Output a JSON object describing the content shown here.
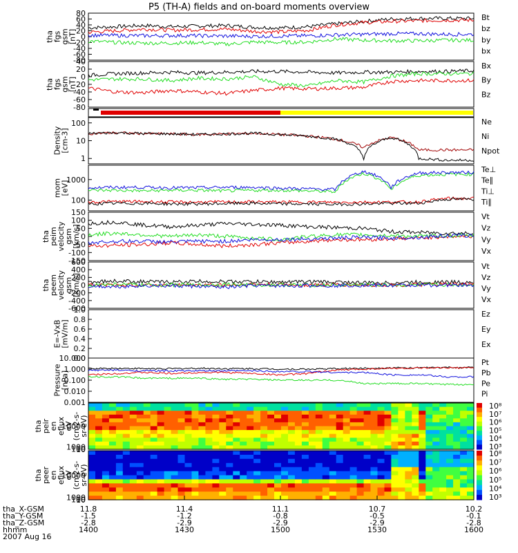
{
  "title": "P5 (TH-A) fields and on-board moments overview",
  "colors": {
    "black": "#000000",
    "red": "#e00000",
    "green": "#22dd22",
    "blue": "#1010dd",
    "darkred": "#a00000",
    "yellow": "#ffff00"
  },
  "footer": {
    "rows": [
      {
        "label": "tha_X-GSM",
        "values": [
          "11.8",
          "11.4",
          "11.1",
          "10.7",
          "10.2"
        ]
      },
      {
        "label": "tha_Y-GSM",
        "values": [
          "-1.5",
          "-1.2",
          "-0.8",
          "-0.5",
          "-0.1"
        ]
      },
      {
        "label": "tha_Z-GSM",
        "values": [
          "-2.8",
          "-2.9",
          "-2.9",
          "-2.9",
          "-2.8"
        ]
      },
      {
        "label": "hhmm",
        "values": [
          "1400",
          "1430",
          "1500",
          "1530",
          "1600"
        ]
      }
    ],
    "date": "2007 Aug 16"
  },
  "chart_data": [
    {
      "id": "fgs",
      "type": "line",
      "ylabel": [
        "tha",
        "fgs",
        "gsm",
        "[nT]"
      ],
      "ylim": [
        -80,
        80
      ],
      "ticks": [
        "80",
        "60",
        "40",
        "20",
        "0",
        "-20",
        "-40",
        "-60",
        "-80"
      ],
      "scale": "linear",
      "legend": [
        {
          "name": "Bt",
          "color": "black"
        },
        {
          "name": "bz",
          "color": "red"
        },
        {
          "name": "by",
          "color": "green"
        },
        {
          "name": "bx",
          "color": "blue"
        }
      ],
      "series": [
        {
          "name": "Bt",
          "color": "black",
          "values": [
            30,
            34,
            38,
            34,
            36,
            38,
            32,
            30,
            34,
            44,
            52,
            60,
            62,
            62,
            62
          ]
        },
        {
          "name": "bz",
          "color": "red",
          "values": [
            15,
            20,
            26,
            22,
            24,
            26,
            18,
            16,
            22,
            40,
            48,
            52,
            54,
            56,
            56
          ]
        },
        {
          "name": "by",
          "color": "green",
          "values": [
            -15,
            -20,
            -22,
            -22,
            -20,
            -26,
            -18,
            -20,
            -18,
            -8,
            -12,
            -14,
            -14,
            -12,
            -12
          ]
        },
        {
          "name": "bx",
          "color": "blue",
          "values": [
            5,
            4,
            3,
            4,
            3,
            2,
            1,
            2,
            3,
            6,
            8,
            10,
            10,
            8,
            8
          ]
        }
      ]
    },
    {
      "id": "fgs2",
      "type": "line",
      "ylabel": [
        "tha",
        "fgs",
        "gsm",
        "[nT]"
      ],
      "ylim": [
        -80,
        40
      ],
      "ticks": [
        "40",
        "20",
        "0",
        "-20",
        "-40",
        "-60",
        "-80"
      ],
      "scale": "linear",
      "legend": [
        {
          "name": "Bx",
          "color": "black"
        },
        {
          "name": "By",
          "color": "red"
        },
        {
          "name": "Bz",
          "color": "green"
        }
      ],
      "series": [
        {
          "name": "Bx",
          "color": "black",
          "values": [
            4,
            8,
            10,
            12,
            10,
            12,
            14,
            14,
            12,
            10,
            12,
            12,
            14,
            14,
            16
          ]
        },
        {
          "name": "By",
          "color": "red",
          "values": [
            -30,
            -40,
            -42,
            -36,
            -40,
            -44,
            -36,
            -30,
            -32,
            -30,
            -28,
            -12,
            -10,
            -10,
            -10
          ]
        },
        {
          "name": "Bz",
          "color": "green",
          "values": [
            -8,
            -6,
            -6,
            -10,
            -4,
            -6,
            0,
            -20,
            -24,
            -10,
            -14,
            2,
            8,
            8,
            8
          ]
        }
      ]
    },
    {
      "id": "density",
      "type": "line",
      "ylabel": [
        "Density",
        "[cm-3]"
      ],
      "ylim": [
        0.5,
        200
      ],
      "ticks": [
        "100",
        "10",
        "1"
      ],
      "tickvals": [
        100,
        10,
        1
      ],
      "scale": "log",
      "legend": [
        {
          "name": "Ne",
          "color": "red"
        },
        {
          "name": "Ni",
          "color": "black"
        },
        {
          "name": "Npot",
          "color": "blue"
        }
      ],
      "series": [
        {
          "name": "Ne",
          "color": "darkred",
          "values": [
            25,
            28,
            25,
            24,
            22,
            24,
            26,
            22,
            18,
            12,
            4,
            15,
            3,
            3,
            3
          ]
        },
        {
          "name": "Ni",
          "color": "black",
          "values": [
            25,
            28,
            25,
            24,
            22,
            24,
            26,
            22,
            18,
            12,
            1,
            15,
            1,
            0.8,
            0.8
          ]
        }
      ]
    },
    {
      "id": "temp",
      "type": "line",
      "ylabel": [
        "mom",
        "[eV]"
      ],
      "ylim": [
        30,
        5000
      ],
      "ticks": [
        "1000",
        "100"
      ],
      "tickvals": [
        1000,
        100
      ],
      "scale": "log",
      "legend": [
        {
          "name": "Te⊥",
          "color": "red"
        },
        {
          "name": "Te∥",
          "color": "black"
        },
        {
          "name": "Ti⊥",
          "color": "green"
        },
        {
          "name": "Ti∥",
          "color": "green"
        }
      ],
      "series": [
        {
          "name": "Ti⊥",
          "color": "green",
          "values": [
            300,
            300,
            280,
            300,
            300,
            280,
            300,
            300,
            280,
            250,
            2000,
            300,
            1600,
            1800,
            1800
          ]
        },
        {
          "name": "Ti∥",
          "color": "blue",
          "values": [
            400,
            420,
            420,
            400,
            400,
            420,
            420,
            380,
            350,
            330,
            2500,
            400,
            2100,
            2200,
            2200
          ]
        },
        {
          "name": "Te⊥",
          "color": "red",
          "values": [
            80,
            85,
            85,
            80,
            80,
            80,
            82,
            80,
            80,
            78,
            80,
            80,
            80,
            120,
            120
          ]
        },
        {
          "name": "Te∥",
          "color": "black",
          "values": [
            65,
            70,
            70,
            65,
            65,
            68,
            70,
            65,
            65,
            62,
            65,
            70,
            70,
            110,
            110
          ]
        }
      ]
    },
    {
      "id": "veli",
      "type": "line",
      "ylabel": [
        "tha",
        "peim",
        "velocity",
        "gsm",
        "[km/s]"
      ],
      "ylim": [
        -150,
        150
      ],
      "ticks": [
        "150",
        "100",
        "50",
        "0",
        "-50",
        "-100",
        "-150"
      ],
      "scale": "linear",
      "legend": [
        {
          "name": "Vt",
          "color": "black"
        },
        {
          "name": "Vz",
          "color": "red"
        },
        {
          "name": "Vy",
          "color": "green"
        },
        {
          "name": "Vx",
          "color": "blue"
        }
      ],
      "series": [
        {
          "name": "Vt",
          "color": "black",
          "values": [
            80,
            90,
            70,
            60,
            70,
            80,
            75,
            70,
            60,
            55,
            50,
            30,
            25,
            20,
            20
          ]
        },
        {
          "name": "Vz",
          "color": "red",
          "values": [
            -60,
            -55,
            -50,
            -40,
            -50,
            -60,
            -50,
            -40,
            -30,
            -20,
            -20,
            -15,
            -10,
            0,
            0
          ]
        },
        {
          "name": "Vy",
          "color": "green",
          "values": [
            10,
            20,
            10,
            0,
            10,
            0,
            -10,
            -20,
            0,
            10,
            10,
            5,
            0,
            5,
            5
          ]
        },
        {
          "name": "Vx",
          "color": "blue",
          "values": [
            -40,
            -30,
            -30,
            -35,
            -30,
            -30,
            -20,
            -20,
            -15,
            -10,
            -5,
            -10,
            -5,
            5,
            5
          ]
        }
      ]
    },
    {
      "id": "vele",
      "type": "line",
      "ylabel": [
        "tha",
        "peem",
        "velocity",
        "gsm",
        "[km/s]"
      ],
      "ylim": [
        -600,
        600
      ],
      "ticks": [
        "600",
        "400",
        "200",
        "0",
        "-200",
        "-400",
        "-600"
      ],
      "scale": "linear",
      "legend": [
        {
          "name": "Vt",
          "color": "black"
        },
        {
          "name": "Vz",
          "color": "red"
        },
        {
          "name": "Vy",
          "color": "green"
        },
        {
          "name": "Vx",
          "color": "blue"
        }
      ],
      "series": [
        {
          "name": "Vt",
          "color": "black",
          "values": [
            80,
            110,
            90,
            80,
            100,
            90,
            90,
            80,
            90,
            80,
            60,
            60,
            80,
            80,
            80
          ]
        },
        {
          "name": "Vz",
          "color": "red",
          "values": [
            10,
            0,
            10,
            0,
            10,
            0,
            20,
            10,
            0,
            10,
            0,
            0,
            10,
            20,
            20
          ]
        },
        {
          "name": "Vy",
          "color": "green",
          "values": [
            0,
            20,
            0,
            10,
            0,
            20,
            0,
            10,
            0,
            0,
            10,
            0,
            0,
            10,
            10
          ]
        },
        {
          "name": "Vx",
          "color": "blue",
          "values": [
            -20,
            -40,
            -10,
            -20,
            -30,
            -60,
            -10,
            -20,
            -10,
            -10,
            0,
            -10,
            0,
            0,
            0
          ]
        }
      ]
    },
    {
      "id": "efield",
      "type": "line",
      "ylabel": [
        "E=-VxB",
        "[mV/m]"
      ],
      "ylim": [
        0,
        1
      ],
      "ticks": [
        "1.0",
        "0.8",
        "0.6",
        "0.4",
        "0.2",
        "0.0"
      ],
      "scale": "linear",
      "legend": [
        {
          "name": "Ez",
          "color": "red"
        },
        {
          "name": "Ey",
          "color": "green"
        },
        {
          "name": "Ex",
          "color": "blue"
        }
      ],
      "series": []
    },
    {
      "id": "pressure",
      "type": "line",
      "ylabel": [
        "Pressure",
        "[nPa]"
      ],
      "ylim": [
        0.001,
        10
      ],
      "ticks": [
        "10.000",
        "1.000",
        "0.100",
        "0.010",
        "0.001"
      ],
      "tickvals": [
        10,
        1,
        0.1,
        0.01,
        0.001
      ],
      "scale": "log",
      "legend": [
        {
          "name": "Pt",
          "color": "black"
        },
        {
          "name": "Pb",
          "color": "red"
        },
        {
          "name": "Pe",
          "color": "green"
        },
        {
          "name": "Pi",
          "color": "blue"
        }
      ],
      "series": [
        {
          "name": "Pt",
          "color": "black",
          "values": [
            1.1,
            1.2,
            1.1,
            1.1,
            1.2,
            1.1,
            1.1,
            1.0,
            1.0,
            1.1,
            1.2,
            1.3,
            1.3,
            1.4,
            1.4
          ]
        },
        {
          "name": "Pb",
          "color": "red",
          "values": [
            0.3,
            0.4,
            0.5,
            0.4,
            0.5,
            0.5,
            0.4,
            0.3,
            0.4,
            0.8,
            1.0,
            1.2,
            1.2,
            1.3,
            1.3
          ]
        },
        {
          "name": "Pi",
          "color": "blue",
          "values": [
            0.8,
            0.8,
            0.7,
            0.7,
            0.7,
            0.7,
            0.7,
            0.6,
            0.6,
            0.5,
            0.5,
            0.3,
            0.3,
            0.2,
            0.2
          ]
        },
        {
          "name": "Pe",
          "color": "green",
          "values": [
            0.2,
            0.2,
            0.15,
            0.15,
            0.15,
            0.12,
            0.12,
            0.1,
            0.1,
            0.1,
            0.05,
            0.05,
            0.05,
            0.04,
            0.04
          ]
        }
      ]
    },
    {
      "id": "ieflux",
      "type": "heatmap",
      "ylabel": [
        "tha",
        "peir",
        "en",
        "eflux",
        "eV",
        "(cm2-s-",
        "sr-eV)"
      ],
      "ticks": [
        "10000",
        "1000",
        "100",
        "10"
      ],
      "tickvals": [
        10000,
        1000,
        100,
        10
      ],
      "ylim": [
        10,
        20000
      ],
      "colorbar": [
        "10⁸",
        "10⁷",
        "10⁶",
        "10⁵",
        "10⁴",
        "10³"
      ]
    },
    {
      "id": "eeflux",
      "type": "heatmap",
      "ylabel": [
        "tha",
        "peer",
        "en",
        "eflux",
        "eV",
        "(cm2-s-",
        "sr-eV)"
      ],
      "ticks": [
        "10000",
        "1000",
        "100",
        "10"
      ],
      "tickvals": [
        10000,
        1000,
        100,
        10
      ],
      "ylim": [
        10,
        20000
      ],
      "colorbar": [
        "10⁸",
        "10⁷",
        "10⁶",
        "10⁵",
        "10⁴",
        "10³"
      ]
    }
  ]
}
